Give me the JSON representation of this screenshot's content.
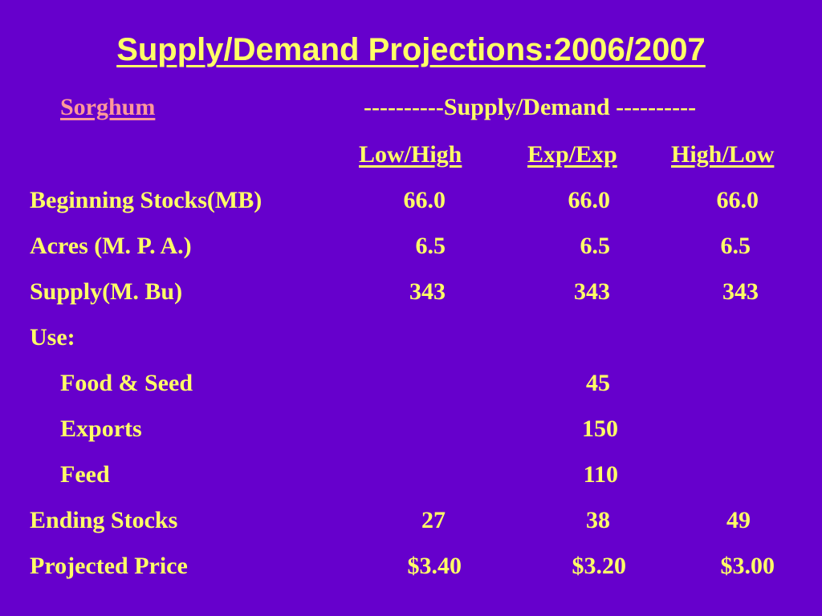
{
  "title": "Supply/Demand Projections:2006/2007",
  "crop": "Sorghum",
  "group_header": "----------Supply/Demand ----------",
  "columns": [
    "Low/High",
    "Exp/Exp",
    "High/Low"
  ],
  "rows": [
    {
      "label": "Beginning Stocks(MB)",
      "values": [
        "66.0",
        "66.0",
        "66.0"
      ]
    },
    {
      "label": "Acres (M. P. A.)",
      "values": [
        "6.5",
        "6.5",
        "6.5"
      ]
    },
    {
      "label": "Supply(M. Bu)",
      "values": [
        "343",
        "343",
        "343"
      ]
    },
    {
      "label": "Use:",
      "values": [
        "",
        "",
        ""
      ]
    },
    {
      "label": "Food & Seed",
      "values": [
        "",
        "45",
        ""
      ]
    },
    {
      "label": "Exports",
      "values": [
        "",
        "150",
        ""
      ]
    },
    {
      "label": "Feed",
      "values": [
        "",
        "110",
        ""
      ]
    },
    {
      "label": "Ending Stocks",
      "values": [
        "27",
        "38",
        "49"
      ]
    },
    {
      "label": "Projected Price",
      "values": [
        "$3.40",
        "$3.20",
        "$3.00"
      ]
    }
  ],
  "colors": {
    "background": "#6600cc",
    "text": "#ffff66",
    "crop_label": "#ff9999"
  }
}
